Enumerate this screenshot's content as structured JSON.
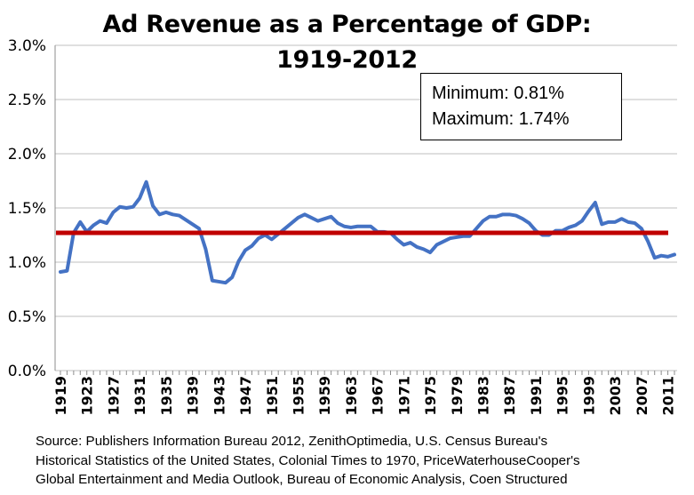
{
  "chart_data": {
    "type": "line",
    "title": "Ad Revenue as a Percentage of GDP:",
    "subtitle": "1919-2012",
    "x": [
      1919,
      1920,
      1921,
      1922,
      1923,
      1924,
      1925,
      1926,
      1927,
      1928,
      1929,
      1930,
      1931,
      1932,
      1933,
      1934,
      1935,
      1936,
      1937,
      1938,
      1939,
      1940,
      1941,
      1942,
      1943,
      1944,
      1945,
      1946,
      1947,
      1948,
      1949,
      1950,
      1951,
      1952,
      1953,
      1954,
      1955,
      1956,
      1957,
      1958,
      1959,
      1960,
      1961,
      1962,
      1963,
      1964,
      1965,
      1966,
      1967,
      1968,
      1969,
      1970,
      1971,
      1972,
      1973,
      1974,
      1975,
      1976,
      1977,
      1978,
      1979,
      1980,
      1981,
      1982,
      1983,
      1984,
      1985,
      1986,
      1987,
      1988,
      1989,
      1990,
      1991,
      1992,
      1993,
      1994,
      1995,
      1996,
      1997,
      1998,
      1999,
      2000,
      2001,
      2002,
      2003,
      2004,
      2005,
      2006,
      2007,
      2008,
      2009,
      2010,
      2011,
      2012
    ],
    "series": [
      {
        "values": [
          0.91,
          0.92,
          1.27,
          1.37,
          1.28,
          1.34,
          1.38,
          1.36,
          1.46,
          1.51,
          1.5,
          1.51,
          1.59,
          1.74,
          1.52,
          1.44,
          1.46,
          1.44,
          1.43,
          1.39,
          1.35,
          1.31,
          1.12,
          0.83,
          0.82,
          0.81,
          0.86,
          1.01,
          1.11,
          1.15,
          1.22,
          1.25,
          1.21,
          1.26,
          1.31,
          1.36,
          1.41,
          1.44,
          1.41,
          1.38,
          1.4,
          1.42,
          1.36,
          1.33,
          1.32,
          1.33,
          1.33,
          1.33,
          1.28,
          1.28,
          1.27,
          1.21,
          1.16,
          1.18,
          1.14,
          1.12,
          1.09,
          1.16,
          1.19,
          1.22,
          1.23,
          1.24,
          1.24,
          1.31,
          1.38,
          1.42,
          1.42,
          1.44,
          1.44,
          1.43,
          1.4,
          1.36,
          1.29,
          1.25,
          1.25,
          1.29,
          1.29,
          1.32,
          1.34,
          1.38,
          1.47,
          1.55,
          1.35,
          1.37,
          1.37,
          1.4,
          1.37,
          1.36,
          1.31,
          1.19,
          1.04,
          1.06,
          1.05,
          1.07
        ],
        "color": "#4472C4"
      }
    ],
    "average_line": {
      "value": 1.27,
      "color": "#C00000"
    },
    "ylim": [
      0,
      3.0
    ],
    "yticks": [
      "0.0%",
      "0.5%",
      "1.0%",
      "1.5%",
      "2.0%",
      "2.5%",
      "3.0%"
    ],
    "xticks": [
      "1919",
      "1923",
      "1927",
      "1931",
      "1935",
      "1939",
      "1943",
      "1947",
      "1951",
      "1955",
      "1959",
      "1963",
      "1967",
      "1971",
      "1975",
      "1979",
      "1983",
      "1987",
      "1991",
      "1995",
      "1999",
      "2003",
      "2007",
      "2011"
    ],
    "grid": true,
    "xlabel": "",
    "ylabel": ""
  },
  "stats_box": {
    "minimum": "Minimum: 0.81%",
    "maximum": "Maximum: 1.74%"
  },
  "source_lines": [
    "Source: Publishers Information Bureau 2012, ZenithOptimedia, U.S. Census Bureau's",
    "Historical Statistics of the United States, Colonial Times to 1970, PriceWaterhouseCooper's",
    "Global Entertainment and Media Outlook, Bureau of Economic Analysis, Coen Structured"
  ]
}
